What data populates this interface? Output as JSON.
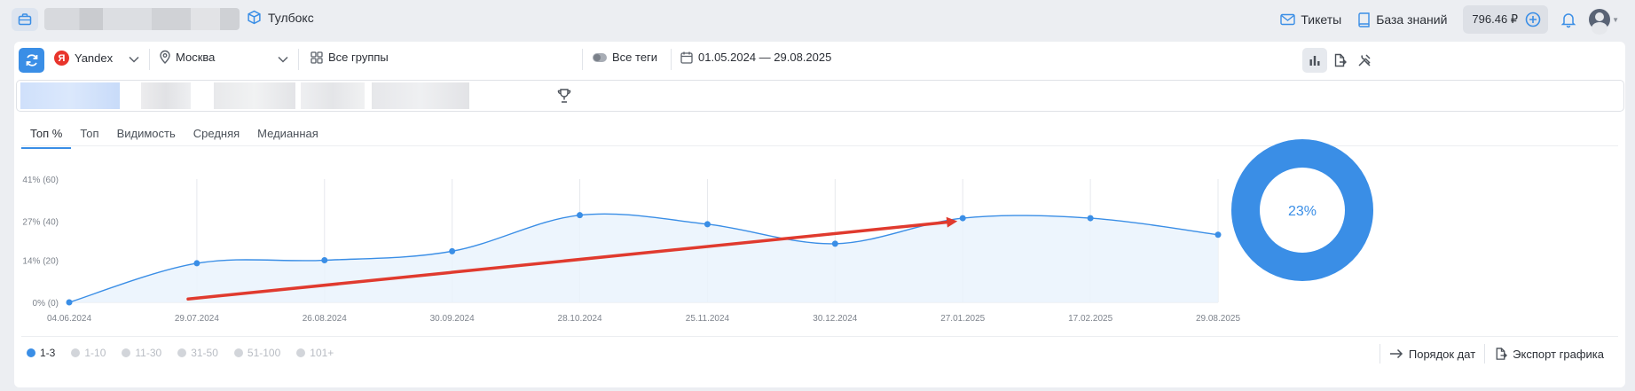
{
  "header": {
    "toolbox_label": "Тулбокс",
    "tickets_label": "Тикеты",
    "kb_label": "База знаний",
    "balance": "796.46 ₽"
  },
  "filters": {
    "engine": "Yandex",
    "region": "Москва",
    "groups": "Все группы",
    "tags": "Все теги",
    "date_range": "01.05.2024 — 29.08.2025"
  },
  "tabs": [
    {
      "label": "Топ %",
      "active": true
    },
    {
      "label": "Топ",
      "active": false
    },
    {
      "label": "Видимость",
      "active": false
    },
    {
      "label": "Средняя",
      "active": false
    },
    {
      "label": "Медианная",
      "active": false
    }
  ],
  "chart_data": {
    "type": "line",
    "y_ticks": [
      "41% (60)",
      "27% (40)",
      "14% (20)",
      "0% (0)"
    ],
    "x_labels": [
      "04.06.2024",
      "29.07.2024",
      "26.08.2024",
      "30.09.2024",
      "28.10.2024",
      "25.11.2024",
      "30.12.2024",
      "27.01.2025",
      "17.02.2025",
      "29.08.2025"
    ],
    "ylim": [
      0,
      41
    ],
    "grid": true,
    "series": [
      {
        "values": [
          0,
          13,
          14,
          17,
          29,
          26,
          19.5,
          28,
          28,
          22.5
        ],
        "color": "#3a8ee6"
      }
    ],
    "annotation": {
      "type": "arrow",
      "color": "#e03a2e"
    }
  },
  "donut": {
    "value_label": "23%",
    "percent": 100,
    "color": "#3a8ee6"
  },
  "legend": [
    {
      "label": "1-3",
      "active": true
    },
    {
      "label": "1-10",
      "active": false
    },
    {
      "label": "11-30",
      "active": false
    },
    {
      "label": "31-50",
      "active": false
    },
    {
      "label": "51-100",
      "active": false
    },
    {
      "label": "101+",
      "active": false
    }
  ],
  "actions": {
    "date_order": "Порядок дат",
    "export_chart": "Экспорт графика"
  }
}
